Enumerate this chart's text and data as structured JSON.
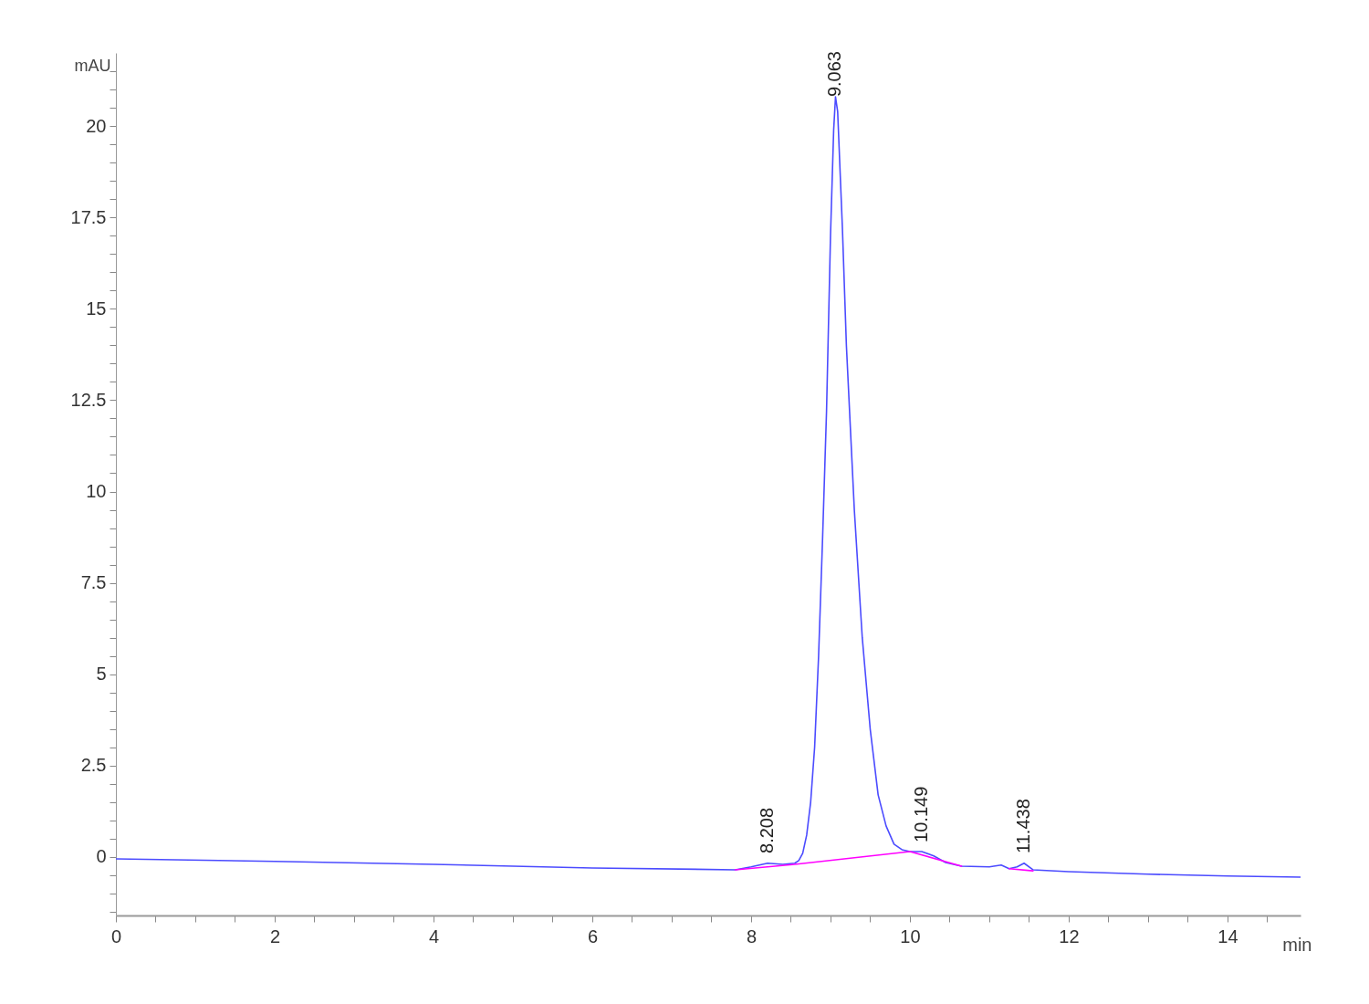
{
  "chart_data": {
    "type": "line",
    "xlabel": "min",
    "ylabel": "mAU",
    "xlim": [
      0,
      14.92
    ],
    "ylim": [
      -1.6,
      22
    ],
    "xticks": [
      0,
      {
        "value": 0.5,
        "label": null
      },
      {
        "value": 1,
        "label": null
      },
      {
        "value": 1.5,
        "label": null
      },
      2,
      {
        "value": 2.5,
        "label": null
      },
      {
        "value": 3,
        "label": null
      },
      {
        "value": 3.5,
        "label": null
      },
      4,
      {
        "value": 4.5,
        "label": null
      },
      {
        "value": 5,
        "label": null
      },
      {
        "value": 5.5,
        "label": null
      },
      6,
      {
        "value": 6.5,
        "label": null
      },
      {
        "value": 7,
        "label": null
      },
      {
        "value": 7.5,
        "label": null
      },
      8,
      {
        "value": 8.5,
        "label": null
      },
      {
        "value": 9,
        "label": null
      },
      {
        "value": 9.5,
        "label": null
      },
      10,
      {
        "value": 10.5,
        "label": null
      },
      {
        "value": 11,
        "label": null
      },
      {
        "value": 11.5,
        "label": null
      },
      12,
      {
        "value": 12.5,
        "label": null
      },
      {
        "value": 13,
        "label": null
      },
      {
        "value": 13.5,
        "label": null
      },
      14,
      {
        "value": 14.5,
        "label": null
      }
    ],
    "yticks": [
      {
        "value": -1.5,
        "label": null
      },
      {
        "value": -1,
        "label": null
      },
      {
        "value": -0.5,
        "label": null
      },
      0,
      {
        "value": 0.5,
        "label": null
      },
      {
        "value": 1,
        "label": null
      },
      {
        "value": 1.5,
        "label": null
      },
      {
        "value": 2,
        "label": null
      },
      2.5,
      {
        "value": 3,
        "label": null
      },
      {
        "value": 3.5,
        "label": null
      },
      {
        "value": 4,
        "label": null
      },
      {
        "value": 4.5,
        "label": null
      },
      5,
      {
        "value": 5.5,
        "label": null
      },
      {
        "value": 6,
        "label": null
      },
      {
        "value": 6.5,
        "label": null
      },
      {
        "value": 7,
        "label": null
      },
      7.5,
      {
        "value": 8,
        "label": null
      },
      {
        "value": 8.5,
        "label": null
      },
      {
        "value": 9,
        "label": null
      },
      {
        "value": 9.5,
        "label": null
      },
      10,
      {
        "value": 10.5,
        "label": null
      },
      {
        "value": 11,
        "label": null
      },
      {
        "value": 11.5,
        "label": null
      },
      {
        "value": 12,
        "label": null
      },
      12.5,
      {
        "value": 13,
        "label": null
      },
      {
        "value": 13.5,
        "label": null
      },
      {
        "value": 14,
        "label": null
      },
      {
        "value": 14.5,
        "label": null
      },
      15,
      {
        "value": 15.5,
        "label": null
      },
      {
        "value": 16,
        "label": null
      },
      {
        "value": 16.5,
        "label": null
      },
      {
        "value": 17,
        "label": null
      },
      17.5,
      {
        "value": 18,
        "label": null
      },
      {
        "value": 18.5,
        "label": null
      },
      {
        "value": 19,
        "label": null
      },
      {
        "value": 19.5,
        "label": null
      },
      20,
      {
        "value": 20.5,
        "label": null
      },
      {
        "value": 21,
        "label": null
      },
      {
        "value": 21.5,
        "label": null
      }
    ],
    "grid": false,
    "marker": "none",
    "line_style": "solid",
    "series": [
      {
        "color": "#4b4bff",
        "x": [
          0,
          2,
          4,
          6,
          7.8,
          8.0,
          8.208,
          8.4,
          8.55,
          8.6,
          8.65,
          8.7,
          8.75,
          8.8,
          8.85,
          8.9,
          8.95,
          9.0,
          9.04,
          9.063,
          9.09,
          9.15,
          9.2,
          9.3,
          9.4,
          9.5,
          9.6,
          9.7,
          9.8,
          9.9,
          10.0,
          10.149,
          10.3,
          10.45,
          10.65,
          11.0,
          11.15,
          11.25,
          11.35,
          11.438,
          11.55,
          12,
          13,
          14,
          14.92
        ],
        "values": [
          -0.05,
          -0.12,
          -0.2,
          -0.3,
          -0.35,
          -0.27,
          -0.17,
          -0.2,
          -0.17,
          -0.1,
          0.1,
          0.6,
          1.5,
          3,
          5.5,
          8.7,
          12.2,
          17,
          19.9,
          20.8,
          20.4,
          17.2,
          14,
          9.5,
          6,
          3.5,
          1.7,
          0.85,
          0.35,
          0.2,
          0.15,
          0.15,
          0.03,
          -0.15,
          -0.25,
          -0.27,
          -0.22,
          -0.32,
          -0.27,
          -0.17,
          -0.35,
          -0.4,
          -0.47,
          -0.52,
          -0.55
        ]
      },
      {
        "color": "#ff00ff",
        "x": [
          7.8,
          8.55,
          10.0,
          10.65,
          10.9,
          11.25,
          11.55
        ],
        "values": [
          -0.35,
          -0.2,
          0.15,
          -0.25,
          null,
          -0.32,
          -0.38
        ]
      }
    ],
    "annotations": [
      {
        "text": "8.208",
        "x": 8.208,
        "y": -0.1
      },
      {
        "text": "9.063",
        "x": 9.063,
        "y": 20.6
      },
      {
        "text": "10.149",
        "x": 10.149,
        "y": 0.2
      },
      {
        "text": "11.438",
        "x": 11.438,
        "y": -0.1
      }
    ]
  }
}
